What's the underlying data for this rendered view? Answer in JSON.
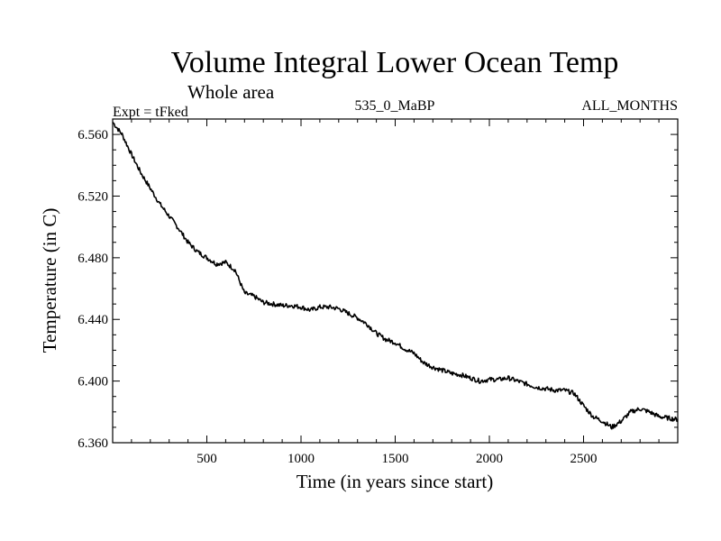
{
  "chart_data": {
    "type": "line",
    "title": "Volume Integral Lower Ocean Temp",
    "subtitle": "Whole area",
    "info_left": "Expt = tFked",
    "info_center": "535_0_MaBP",
    "info_right": "ALL_MONTHS",
    "xlabel": "Time (in years since start)",
    "ylabel": "Temperature (in C)",
    "xlim": [
      0,
      3000
    ],
    "ylim": [
      6.36,
      6.57
    ],
    "x_ticks": [
      500,
      1000,
      1500,
      2000,
      2500
    ],
    "x_tick_labels": [
      "500",
      "1000",
      "1500",
      "2000",
      "2500"
    ],
    "y_ticks": [
      6.36,
      6.4,
      6.44,
      6.48,
      6.52,
      6.56
    ],
    "y_tick_labels": [
      "6.360",
      "6.400",
      "6.440",
      "6.480",
      "6.520",
      "6.560"
    ],
    "grid": false,
    "line_color": "#000000",
    "series": [
      {
        "x": [
          0,
          50,
          100,
          150,
          200,
          250,
          300,
          350,
          400,
          450,
          500,
          550,
          600,
          650,
          700,
          750,
          800,
          850,
          900,
          950,
          1000,
          1050,
          1100,
          1150,
          1200,
          1250,
          1300,
          1350,
          1400,
          1450,
          1500,
          1550,
          1600,
          1650,
          1700,
          1750,
          1800,
          1850,
          1900,
          1950,
          2000,
          2050,
          2100,
          2150,
          2200,
          2250,
          2300,
          2350,
          2400,
          2450,
          2500,
          2550,
          2600,
          2650,
          2700,
          2750,
          2800,
          2850,
          2900,
          2950,
          3000
        ],
        "y": [
          6.568,
          6.56,
          6.547,
          6.535,
          6.525,
          6.515,
          6.507,
          6.499,
          6.49,
          6.484,
          6.48,
          6.476,
          6.477,
          6.472,
          6.457,
          6.455,
          6.451,
          6.45,
          6.449,
          6.449,
          6.448,
          6.446,
          6.448,
          6.448,
          6.447,
          6.444,
          6.441,
          6.437,
          6.431,
          6.427,
          6.425,
          6.421,
          6.418,
          6.412,
          6.409,
          6.407,
          6.405,
          6.404,
          6.402,
          6.4,
          6.401,
          6.401,
          6.402,
          6.4,
          6.398,
          6.396,
          6.395,
          6.394,
          6.394,
          6.392,
          6.384,
          6.377,
          6.374,
          6.37,
          6.374,
          6.38,
          6.382,
          6.38,
          6.377,
          6.376,
          6.375
        ]
      }
    ]
  }
}
